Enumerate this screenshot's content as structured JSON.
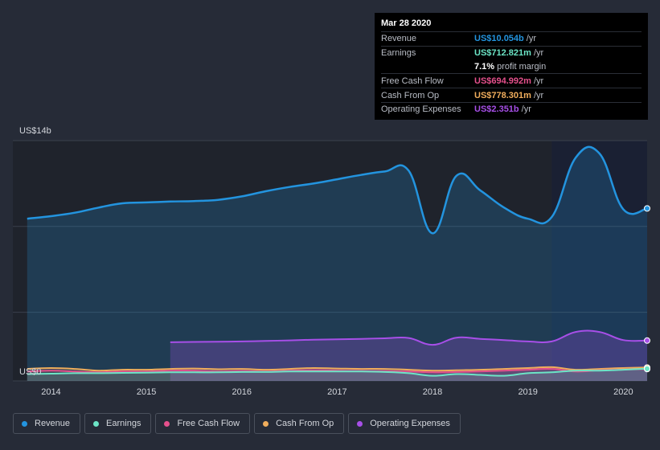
{
  "tooltip": {
    "date": "Mar 28 2020",
    "rows": [
      {
        "label": "Revenue",
        "value": "US$10.054b",
        "unit": "/yr",
        "color": "#2394df"
      },
      {
        "label": "Earnings",
        "value": "US$712.821m",
        "unit": "/yr",
        "color": "#6ce5c6"
      },
      {
        "label": "",
        "value": "7.1%",
        "unit": "profit margin",
        "color": "#ffffff"
      },
      {
        "label": "Free Cash Flow",
        "value": "US$694.992m",
        "unit": "/yr",
        "color": "#e5508c"
      },
      {
        "label": "Cash From Op",
        "value": "US$778.301m",
        "unit": "/yr",
        "color": "#f0ad5c"
      },
      {
        "label": "Operating Expenses",
        "value": "US$2.351b",
        "unit": "/yr",
        "color": "#a74fe8"
      }
    ]
  },
  "legend": [
    {
      "label": "Revenue",
      "color": "#2394df",
      "name": "legend-revenue"
    },
    {
      "label": "Earnings",
      "color": "#6ce5c6",
      "name": "legend-earnings"
    },
    {
      "label": "Free Cash Flow",
      "color": "#e5508c",
      "name": "legend-free-cash-flow"
    },
    {
      "label": "Cash From Op",
      "color": "#f0ad5c",
      "name": "legend-cash-from-op"
    },
    {
      "label": "Operating Expenses",
      "color": "#a74fe8",
      "name": "legend-operating-expenses"
    }
  ],
  "chart_data": {
    "type": "area",
    "y_top_label": "US$14b",
    "y_bottom_label": "US$0",
    "ylim": [
      0,
      14
    ],
    "xlim": [
      2013.6,
      2020.25
    ],
    "x_ticks": [
      "2014",
      "2015",
      "2016",
      "2017",
      "2018",
      "2019",
      "2020"
    ],
    "x_tick_values": [
      2014,
      2015,
      2016,
      2017,
      2018,
      2019,
      2020
    ],
    "gridlines": [
      0,
      4,
      9,
      14
    ],
    "highlight_from": 2019.25,
    "series": [
      {
        "name": "Revenue",
        "color": "#2394df",
        "x": [
          2013.75,
          2014.0,
          2014.25,
          2014.5,
          2014.75,
          2015.0,
          2015.25,
          2015.5,
          2015.75,
          2016.0,
          2016.25,
          2016.5,
          2016.75,
          2017.0,
          2017.25,
          2017.5,
          2017.75,
          2018.0,
          2018.25,
          2018.5,
          2018.75,
          2019.0,
          2019.25,
          2019.5,
          2019.75,
          2020.0,
          2020.25
        ],
        "values": [
          9.45,
          9.6,
          9.8,
          10.1,
          10.35,
          10.4,
          10.45,
          10.48,
          10.55,
          10.75,
          11.05,
          11.3,
          11.5,
          11.75,
          12.0,
          12.2,
          12.25,
          8.6,
          11.95,
          11.1,
          10.1,
          9.45,
          9.55,
          13.0,
          13.25,
          10.0,
          10.05
        ]
      },
      {
        "name": "Operating Expenses",
        "color": "#a74fe8",
        "x": [
          2015.25,
          2015.5,
          2015.75,
          2016.0,
          2016.25,
          2016.5,
          2016.75,
          2017.0,
          2017.25,
          2017.5,
          2017.75,
          2018.0,
          2018.25,
          2018.5,
          2018.75,
          2019.0,
          2019.25,
          2019.5,
          2019.75,
          2020.0,
          2020.25
        ],
        "values": [
          2.25,
          2.27,
          2.28,
          2.3,
          2.33,
          2.36,
          2.4,
          2.42,
          2.45,
          2.48,
          2.5,
          2.1,
          2.52,
          2.45,
          2.38,
          2.3,
          2.3,
          2.85,
          2.85,
          2.38,
          2.35
        ]
      },
      {
        "name": "Cash From Op",
        "color": "#f0ad5c",
        "x": [
          2013.75,
          2014.0,
          2014.25,
          2014.5,
          2014.75,
          2015.0,
          2015.25,
          2015.5,
          2015.75,
          2016.0,
          2016.25,
          2016.5,
          2016.75,
          2017.0,
          2017.25,
          2017.5,
          2017.75,
          2018.0,
          2018.25,
          2018.5,
          2018.75,
          2019.0,
          2019.25,
          2019.5,
          2019.75,
          2020.0,
          2020.25
        ],
        "values": [
          0.7,
          0.75,
          0.7,
          0.6,
          0.65,
          0.65,
          0.7,
          0.72,
          0.68,
          0.7,
          0.65,
          0.7,
          0.75,
          0.72,
          0.7,
          0.7,
          0.65,
          0.6,
          0.62,
          0.65,
          0.7,
          0.75,
          0.8,
          0.65,
          0.7,
          0.75,
          0.78
        ]
      },
      {
        "name": "Free Cash Flow",
        "color": "#e5508c",
        "x": [
          2013.75,
          2014.0,
          2014.25,
          2014.5,
          2014.75,
          2015.0,
          2015.25,
          2015.5,
          2015.75,
          2016.0,
          2016.25,
          2016.5,
          2016.75,
          2017.0,
          2017.25,
          2017.5,
          2017.75,
          2018.0,
          2018.25,
          2018.5,
          2018.75,
          2019.0,
          2019.25,
          2019.5,
          2019.75,
          2020.0,
          2020.25
        ],
        "values": [
          0.55,
          0.6,
          0.55,
          0.5,
          0.55,
          0.55,
          0.6,
          0.6,
          0.55,
          0.58,
          0.55,
          0.6,
          0.62,
          0.6,
          0.58,
          0.57,
          0.55,
          0.5,
          0.52,
          0.55,
          0.6,
          0.65,
          0.7,
          0.55,
          0.62,
          0.66,
          0.69
        ]
      },
      {
        "name": "Earnings",
        "color": "#6ce5c6",
        "x": [
          2013.75,
          2014.0,
          2014.25,
          2014.5,
          2014.75,
          2015.0,
          2015.25,
          2015.5,
          2015.75,
          2016.0,
          2016.25,
          2016.5,
          2016.75,
          2017.0,
          2017.25,
          2017.5,
          2017.75,
          2018.0,
          2018.25,
          2018.5,
          2018.75,
          2019.0,
          2019.25,
          2019.5,
          2019.75,
          2020.0,
          2020.25
        ],
        "values": [
          0.4,
          0.42,
          0.45,
          0.45,
          0.47,
          0.48,
          0.5,
          0.5,
          0.5,
          0.52,
          0.52,
          0.55,
          0.55,
          0.55,
          0.55,
          0.52,
          0.45,
          0.3,
          0.4,
          0.35,
          0.3,
          0.45,
          0.5,
          0.6,
          0.6,
          0.65,
          0.71
        ]
      }
    ]
  }
}
